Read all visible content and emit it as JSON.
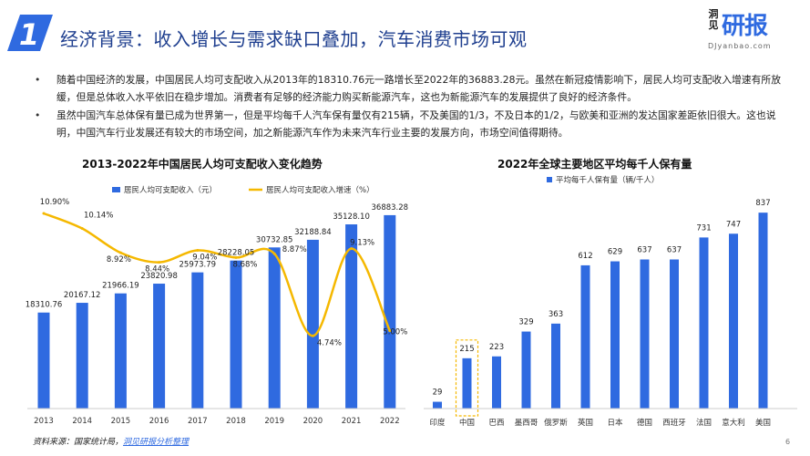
{
  "header": {
    "section_number": "1",
    "title": "经济背景：收入增长与需求缺口叠加，汽车消费市场可观"
  },
  "logo": {
    "small_text": "洞见",
    "big_text": "研报",
    "url": "DJyanbao.com"
  },
  "bullets": [
    "随着中国经济的发展，中国居民人均可支配收入从2013年的18310.76元一路增长至2022年的36883.28元。虽然在新冠疫情影响下，居民人均可支配收入增速有所放缓，但是总体收入水平依旧在稳步增加。消费者有足够的经济能力购买新能源汽车，这也为新能源汽车的发展提供了良好的经济条件。",
    "虽然中国汽车总体保有量已成为世界第一，但是平均每千人汽车保有量仅有215辆，不及美国的1/3，不及日本的1/2，与欧美和亚洲的发达国家差距依旧很大。这也说明，中国汽车行业发展还有较大的市场空间，加之新能源汽车作为未来汽车行业主要的发展方向，市场空间值得期待。"
  ],
  "chart_data": [
    {
      "type": "bar+line",
      "title": "2013-2022年中国居民人均可支配收入变化趋势",
      "categories": [
        "2013",
        "2014",
        "2015",
        "2016",
        "2017",
        "2018",
        "2019",
        "2020",
        "2021",
        "2022"
      ],
      "series": [
        {
          "name": "居民人均可支配收入（元）",
          "kind": "bar",
          "values": [
            18310.76,
            20167.12,
            21966.19,
            23820.98,
            25973.79,
            28228.05,
            30732.85,
            32188.84,
            35128.1,
            36883.28
          ],
          "labels": [
            "18310.76",
            "20167.12",
            "21966.19",
            "23820.98",
            "25973.79",
            "28228.05",
            "30732.85",
            "32188.84",
            "35128.10",
            "36883.28"
          ]
        },
        {
          "name": "居民人均可支配收入增速（%）",
          "kind": "line",
          "values": [
            10.9,
            10.14,
            8.92,
            8.44,
            9.04,
            8.68,
            8.87,
            4.74,
            9.13,
            5.0
          ],
          "labels": [
            "10.90%",
            "10.14%",
            "8.92%",
            "8.44%",
            "9.04%",
            "8.68%",
            "8.87%",
            "4.74%",
            "9.13%",
            "5.00%"
          ]
        }
      ],
      "bar_range": [
        0,
        40000
      ],
      "line_range": [
        2,
        12
      ]
    },
    {
      "type": "bar",
      "title": "2022年全球主要地区平均每千人保有量",
      "legend": "平均每千人保有量（辆/千人）",
      "categories": [
        "印度",
        "中国",
        "巴西",
        "墨西哥",
        "俄罗斯",
        "英国",
        "日本",
        "德国",
        "西班牙",
        "法国",
        "意大利",
        "美国"
      ],
      "values": [
        29,
        215,
        223,
        329,
        363,
        612,
        629,
        637,
        637,
        731,
        747,
        837
      ],
      "labels": [
        "29",
        "215",
        "223",
        "329",
        "363",
        "612",
        "629",
        "637",
        "637",
        "731",
        "747",
        "837"
      ],
      "highlight_index": 1,
      "ylim": [
        0,
        900
      ]
    }
  ],
  "footer": {
    "source_prefix": "资料来源：国家统计局，",
    "source_link": "洞见研报分析整理"
  },
  "page_number": "6",
  "colors": {
    "title": "#1f3f8f",
    "bar": "#2f6ae0",
    "line": "#f5b800",
    "highlight": "#f5b800"
  }
}
